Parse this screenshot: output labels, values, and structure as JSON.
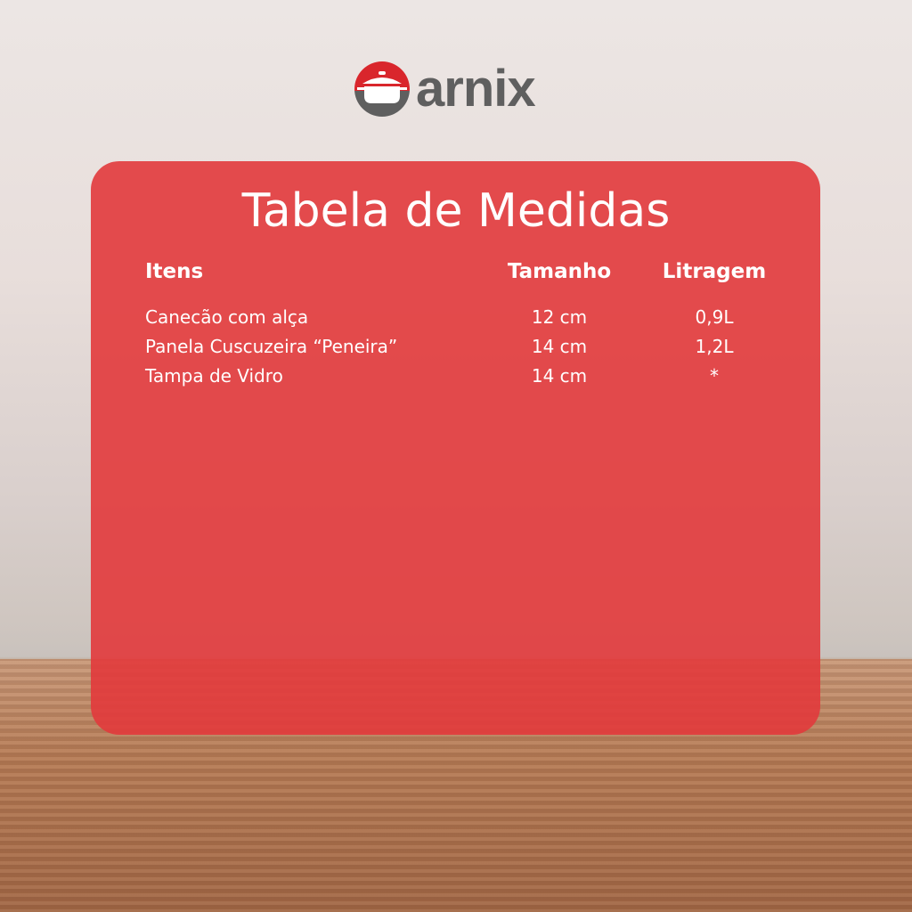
{
  "brand": {
    "name": "arnix",
    "colors": {
      "red": "#d9262c",
      "gray": "#5f5f5f"
    }
  },
  "title": "Tabela de Medidas",
  "table": {
    "headers": [
      "Itens",
      "Tamanho",
      "Litragem"
    ],
    "rows": [
      {
        "item": "Canecão com alça",
        "size": "12 cm",
        "volume": "0,9L"
      },
      {
        "item": "Panela Cuscuzeira “Peneira”",
        "size": "14 cm",
        "volume": "1,2L"
      },
      {
        "item": "Tampa de Vidro",
        "size": "14 cm",
        "volume": "*"
      }
    ]
  },
  "colors": {
    "card": "#e23a3c"
  }
}
